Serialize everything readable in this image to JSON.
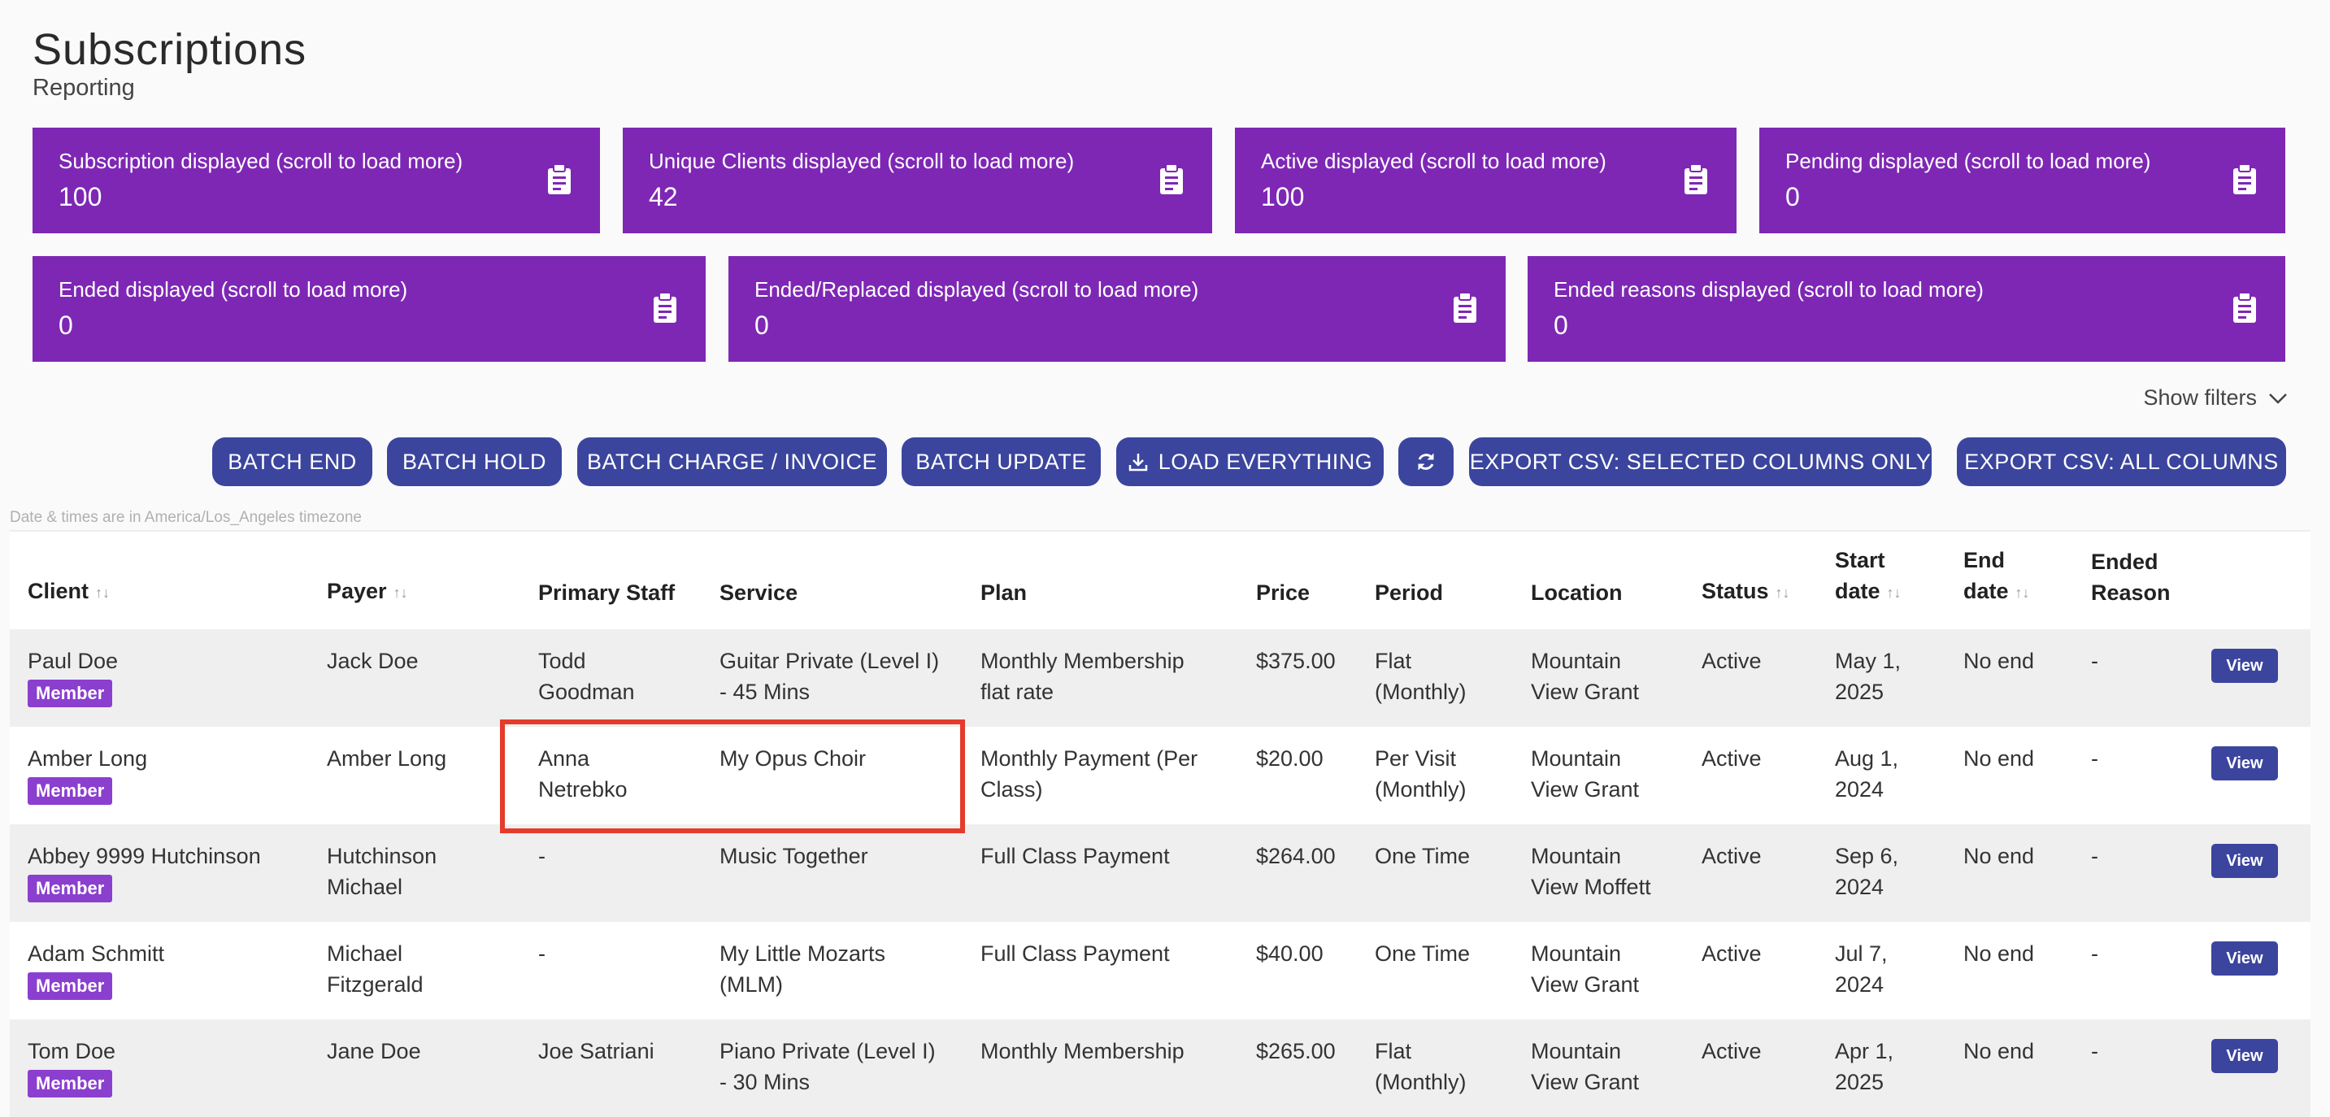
{
  "header": {
    "title": "Subscriptions",
    "subtitle": "Reporting"
  },
  "stats": [
    {
      "label": "Subscription displayed (scroll to load more)",
      "value": "100",
      "icon": "clipboard-icon"
    },
    {
      "label": "Unique Clients displayed (scroll to load more)",
      "value": "42",
      "icon": "clipboard-icon"
    },
    {
      "label": "Active displayed (scroll to load more)",
      "value": "100",
      "icon": "clipboard-icon"
    },
    {
      "label": "Pending displayed (scroll to load more)",
      "value": "0",
      "icon": "clipboard-icon"
    },
    {
      "label": "Ended displayed (scroll to load more)",
      "value": "0",
      "icon": "clipboard-icon"
    },
    {
      "label": "Ended/Replaced displayed (scroll to load more)",
      "value": "0",
      "icon": "clipboard-icon"
    },
    {
      "label": "Ended reasons displayed (scroll to load more)",
      "value": "0",
      "icon": "clipboard-icon"
    }
  ],
  "filters": {
    "label": "Show filters",
    "icon": "chevron-down-icon"
  },
  "toolbar": {
    "batch_end": "BATCH END",
    "batch_hold": "BATCH HOLD",
    "batch_charge": "BATCH CHARGE / INVOICE",
    "batch_update": "BATCH UPDATE",
    "load_everything": "LOAD EVERYTHING",
    "export_selected": "EXPORT CSV: SELECTED COLUMNS ONLY",
    "export_all": "EXPORT CSV: ALL COLUMNS"
  },
  "timezone_note": "Date & times are in America/Los_Angeles timezone",
  "table": {
    "columns": {
      "client": "Client",
      "payer": "Payer",
      "staff": "Primary Staff",
      "service": "Service",
      "plan": "Plan",
      "price": "Price",
      "period": "Period",
      "location": "Location",
      "status": "Status",
      "start_1": "Start",
      "start_2": "date",
      "end_1": "End",
      "end_2": "date",
      "reason_1": "Ended",
      "reason_2": "Reason"
    },
    "sort_glyph": "↑↓",
    "view_label": "View",
    "rows": [
      {
        "client": "Paul Doe",
        "badge": "Member",
        "payer_1": "Jack Doe",
        "payer_2": "",
        "staff_1": "Todd",
        "staff_2": "Goodman",
        "service_1": "Guitar Private (Level I)",
        "service_2": "- 45 Mins",
        "plan_1": "Monthly Membership",
        "plan_2": "flat rate",
        "price": "$375.00",
        "period_1": "Flat",
        "period_2": "(Monthly)",
        "location_1": "Mountain",
        "location_2": "View Grant",
        "status": "Active",
        "start_1": "May 1,",
        "start_2": "2025",
        "end": "No end",
        "reason": "-"
      },
      {
        "client": "Amber Long",
        "badge": "Member",
        "payer_1": "Amber Long",
        "payer_2": "",
        "staff_1": "Anna",
        "staff_2": "Netrebko",
        "service_1": "My Opus Choir",
        "service_2": "",
        "plan_1": "Monthly Payment (Per",
        "plan_2": "Class)",
        "price": "$20.00",
        "period_1": "Per Visit",
        "period_2": "(Monthly)",
        "location_1": "Mountain",
        "location_2": "View Grant",
        "status": "Active",
        "start_1": "Aug 1,",
        "start_2": "2024",
        "end": "No end",
        "reason": "-"
      },
      {
        "client": "Abbey 9999 Hutchinson",
        "badge": "Member",
        "payer_1": "Hutchinson",
        "payer_2": "Michael",
        "staff_1": "-",
        "staff_2": "",
        "service_1": "Music Together",
        "service_2": "",
        "plan_1": "Full Class Payment",
        "plan_2": "",
        "price": "$264.00",
        "period_1": "One Time",
        "period_2": "",
        "location_1": "Mountain",
        "location_2": "View Moffett",
        "status": "Active",
        "start_1": "Sep 6,",
        "start_2": "2024",
        "end": "No end",
        "reason": "-"
      },
      {
        "client": "Adam Schmitt",
        "badge": "Member",
        "payer_1": "Michael",
        "payer_2": "Fitzgerald",
        "staff_1": "-",
        "staff_2": "",
        "service_1": "My Little Mozarts",
        "service_2": "(MLM)",
        "plan_1": "Full Class Payment",
        "plan_2": "",
        "price": "$40.00",
        "period_1": "One Time",
        "period_2": "",
        "location_1": "Mountain",
        "location_2": "View Grant",
        "status": "Active",
        "start_1": "Jul 7,",
        "start_2": "2024",
        "end": "No end",
        "reason": "-"
      },
      {
        "client": "Tom Doe",
        "badge": "Member",
        "payer_1": "Jane Doe",
        "payer_2": "",
        "staff_1": "Joe Satriani",
        "staff_2": "",
        "service_1": "Piano Private (Level I)",
        "service_2": "- 30 Mins",
        "plan_1": "Monthly Membership",
        "plan_2": "",
        "price": "$265.00",
        "period_1": "Flat",
        "period_2": "(Monthly)",
        "location_1": "Mountain",
        "location_2": "View Grant",
        "status": "Active",
        "start_1": "Apr 1,",
        "start_2": "2025",
        "end": "No end",
        "reason": "-"
      }
    ]
  }
}
